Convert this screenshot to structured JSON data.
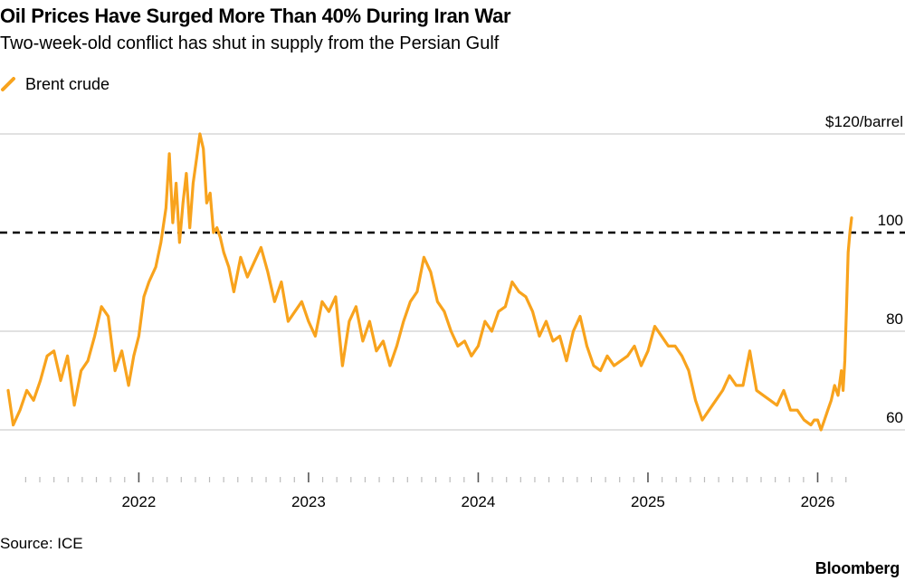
{
  "header": {
    "title": "Oil Prices Have Surged More Than 40% During Iran War",
    "subtitle": "Two-week-old conflict has shut in supply from the Persian Gulf"
  },
  "footer": {
    "source": "Source: ICE",
    "brand": "Bloomberg"
  },
  "colors": {
    "series": "#f8a31d",
    "grid": "#cfcfcf",
    "reference": "#000000",
    "text": "#000000"
  },
  "chart_data": {
    "type": "line",
    "title": "Oil Prices Have Surged More Than 40% During Iran War",
    "subtitle": "Two-week-old conflict has shut in supply from the Persian Gulf",
    "xlabel": "",
    "ylabel": "",
    "legend": {
      "position": "top-left",
      "entries": [
        "Brent crude"
      ]
    },
    "ylim": [
      54,
      122
    ],
    "xlim": [
      2021.2,
      2026.46
    ],
    "grid": true,
    "y_ticks": [
      {
        "value": 120,
        "label": "$120/barrel"
      },
      {
        "value": 100,
        "label": "100"
      },
      {
        "value": 80,
        "label": "80"
      },
      {
        "value": 60,
        "label": "60"
      }
    ],
    "x_ticks": [
      {
        "value": 2022,
        "label": "2022"
      },
      {
        "value": 2023,
        "label": "2023"
      },
      {
        "value": 2024,
        "label": "2024"
      },
      {
        "value": 2025,
        "label": "2025"
      },
      {
        "value": 2026,
        "label": "2026"
      }
    ],
    "reference_lines": [
      {
        "y": 100,
        "style": "dashed"
      }
    ],
    "series": [
      {
        "name": "Brent crude",
        "x": [
          2021.23,
          2021.26,
          2021.3,
          2021.34,
          2021.38,
          2021.42,
          2021.46,
          2021.5,
          2021.54,
          2021.58,
          2021.62,
          2021.66,
          2021.7,
          2021.74,
          2021.78,
          2021.82,
          2021.86,
          2021.9,
          2021.94,
          2021.97,
          2022.0,
          2022.03,
          2022.06,
          2022.1,
          2022.13,
          2022.16,
          2022.18,
          2022.2,
          2022.22,
          2022.24,
          2022.26,
          2022.28,
          2022.3,
          2022.32,
          2022.34,
          2022.36,
          2022.38,
          2022.4,
          2022.42,
          2022.44,
          2022.46,
          2022.48,
          2022.5,
          2022.53,
          2022.56,
          2022.6,
          2022.64,
          2022.68,
          2022.72,
          2022.76,
          2022.8,
          2022.84,
          2022.88,
          2022.92,
          2022.96,
          2023.0,
          2023.04,
          2023.08,
          2023.12,
          2023.16,
          2023.2,
          2023.24,
          2023.28,
          2023.32,
          2023.36,
          2023.4,
          2023.44,
          2023.48,
          2023.52,
          2023.56,
          2023.6,
          2023.64,
          2023.68,
          2023.72,
          2023.76,
          2023.8,
          2023.84,
          2023.88,
          2023.92,
          2023.96,
          2024.0,
          2024.04,
          2024.08,
          2024.12,
          2024.16,
          2024.2,
          2024.24,
          2024.28,
          2024.32,
          2024.36,
          2024.4,
          2024.44,
          2024.48,
          2024.52,
          2024.56,
          2024.6,
          2024.64,
          2024.68,
          2024.72,
          2024.76,
          2024.8,
          2024.84,
          2024.88,
          2024.92,
          2024.96,
          2025.0,
          2025.04,
          2025.08,
          2025.12,
          2025.16,
          2025.2,
          2025.24,
          2025.28,
          2025.32,
          2025.36,
          2025.4,
          2025.44,
          2025.48,
          2025.52,
          2025.56,
          2025.6,
          2025.64,
          2025.68,
          2025.72,
          2025.76,
          2025.8,
          2025.84,
          2025.88,
          2025.92,
          2025.96,
          2025.98,
          2026.0,
          2026.02,
          2026.04,
          2026.06,
          2026.08,
          2026.1,
          2026.12,
          2026.14,
          2026.15,
          2026.16,
          2026.17,
          2026.18,
          2026.19,
          2026.2
        ],
        "values": [
          68,
          61,
          64,
          68,
          66,
          70,
          75,
          76,
          70,
          75,
          65,
          72,
          74,
          79,
          85,
          83,
          72,
          76,
          69,
          75,
          79,
          87,
          90,
          93,
          98,
          105,
          116,
          102,
          110,
          98,
          106,
          112,
          101,
          110,
          115,
          120,
          117,
          106,
          108,
          100,
          101,
          99,
          96,
          93,
          88,
          95,
          91,
          94,
          97,
          92,
          86,
          90,
          82,
          84,
          86,
          82,
          79,
          86,
          84,
          87,
          73,
          82,
          85,
          78,
          82,
          76,
          78,
          73,
          77,
          82,
          86,
          88,
          95,
          92,
          86,
          84,
          80,
          77,
          78,
          75,
          77,
          82,
          80,
          84,
          85,
          90,
          88,
          87,
          84,
          79,
          82,
          78,
          79,
          74,
          80,
          83,
          77,
          73,
          72,
          75,
          73,
          74,
          75,
          77,
          73,
          76,
          81,
          79,
          77,
          77,
          75,
          72,
          66,
          62,
          64,
          66,
          68,
          71,
          69,
          69,
          76,
          68,
          67,
          66,
          65,
          68,
          64,
          64,
          62,
          61,
          62,
          62,
          60,
          62,
          64,
          66,
          69,
          67,
          72,
          68,
          74,
          85,
          96,
          100,
          103
        ]
      }
    ]
  }
}
